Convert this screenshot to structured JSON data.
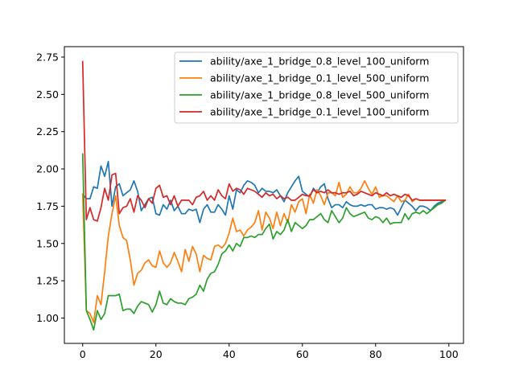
{
  "chart_data": {
    "type": "line",
    "title": "",
    "xlabel": "",
    "ylabel": "",
    "xlim": [
      -5,
      104
    ],
    "ylim": [
      0.83,
      2.82
    ],
    "x_ticks": [
      0,
      20,
      40,
      60,
      80,
      100
    ],
    "x_tick_labels": [
      "0",
      "20",
      "40",
      "60",
      "80",
      "100"
    ],
    "y_ticks": [
      1.0,
      1.25,
      1.5,
      1.75,
      2.0,
      2.25,
      2.5,
      2.75
    ],
    "y_tick_labels": [
      "1.00",
      "1.25",
      "1.50",
      "1.75",
      "2.00",
      "2.25",
      "2.50",
      "2.75"
    ],
    "grid": false,
    "legend_position": "top-right",
    "series": [
      {
        "name": "ability/axe_1_bridge_0.8_level_100_uniform",
        "color": "#1f77b4",
        "x": [
          0,
          1,
          2,
          3,
          4,
          5,
          6,
          7,
          8,
          9,
          10,
          11,
          12,
          13,
          14,
          15,
          16,
          17,
          18,
          19,
          20,
          21,
          22,
          23,
          24,
          25,
          26,
          27,
          28,
          29,
          30,
          31,
          32,
          33,
          34,
          35,
          36,
          37,
          38,
          39,
          40,
          41,
          42,
          43,
          44,
          45,
          46,
          47,
          48,
          49,
          50,
          51,
          52,
          53,
          54,
          55,
          56,
          57,
          58,
          59,
          60,
          61,
          62,
          63,
          64,
          65,
          66,
          67,
          68,
          69,
          70,
          71,
          72,
          73,
          74,
          75,
          76,
          77,
          78,
          79,
          80,
          81,
          82,
          83,
          84,
          85,
          86,
          87,
          88,
          89,
          90,
          91,
          92,
          93,
          94,
          95,
          96,
          97,
          98,
          99
        ],
        "y": [
          1.83,
          1.8,
          1.8,
          1.88,
          1.87,
          2.02,
          1.95,
          2.05,
          1.75,
          1.88,
          1.9,
          1.82,
          1.84,
          1.86,
          1.92,
          1.85,
          1.72,
          1.76,
          1.8,
          1.81,
          1.7,
          1.69,
          1.76,
          1.73,
          1.79,
          1.72,
          1.75,
          1.7,
          1.7,
          1.73,
          1.72,
          1.73,
          1.64,
          1.73,
          1.76,
          1.71,
          1.71,
          1.76,
          1.73,
          1.69,
          1.82,
          1.73,
          1.86,
          1.84,
          1.89,
          1.92,
          1.91,
          1.89,
          1.84,
          1.87,
          1.85,
          1.85,
          1.84,
          1.86,
          1.82,
          1.78,
          1.84,
          1.88,
          1.92,
          1.95,
          1.85,
          1.83,
          1.81,
          1.87,
          1.84,
          1.88,
          1.9,
          1.8,
          1.74,
          1.76,
          1.76,
          1.74,
          1.78,
          1.76,
          1.75,
          1.75,
          1.76,
          1.75,
          1.76,
          1.76,
          1.73,
          1.74,
          1.74,
          1.73,
          1.74,
          1.73,
          1.69,
          1.74,
          1.79,
          1.77,
          1.75,
          1.72,
          1.75,
          1.75,
          1.74,
          1.72,
          1.75,
          1.77,
          1.78,
          1.79
        ]
      },
      {
        "name": "ability/axe_1_bridge_0.1_level_500_uniform",
        "color": "#ff7f0e",
        "x": [
          0,
          1,
          2,
          3,
          4,
          5,
          6,
          7,
          8,
          9,
          10,
          11,
          12,
          13,
          14,
          15,
          16,
          17,
          18,
          19,
          20,
          21,
          22,
          23,
          24,
          25,
          26,
          27,
          28,
          29,
          30,
          31,
          32,
          33,
          34,
          35,
          36,
          37,
          38,
          39,
          40,
          41,
          42,
          43,
          44,
          45,
          46,
          47,
          48,
          49,
          50,
          51,
          52,
          53,
          54,
          55,
          56,
          57,
          58,
          59,
          60,
          61,
          62,
          63,
          64,
          65,
          66,
          67,
          68,
          69,
          70,
          71,
          72,
          73,
          74,
          75,
          76,
          77,
          78,
          79,
          80,
          81,
          82,
          83,
          84,
          85,
          86,
          87,
          88,
          89,
          90,
          91,
          92,
          93,
          94,
          95,
          96,
          97,
          98,
          99
        ],
        "y": [
          1.83,
          1.05,
          1.03,
          0.97,
          1.15,
          1.09,
          1.31,
          1.55,
          1.7,
          1.82,
          1.62,
          1.54,
          1.52,
          1.39,
          1.22,
          1.3,
          1.32,
          1.37,
          1.39,
          1.35,
          1.34,
          1.45,
          1.37,
          1.34,
          1.37,
          1.44,
          1.38,
          1.31,
          1.46,
          1.38,
          1.48,
          1.43,
          1.31,
          1.42,
          1.4,
          1.39,
          1.48,
          1.49,
          1.47,
          1.5,
          1.57,
          1.67,
          1.58,
          1.59,
          1.55,
          1.59,
          1.61,
          1.64,
          1.72,
          1.59,
          1.71,
          1.67,
          1.6,
          1.71,
          1.62,
          1.7,
          1.64,
          1.76,
          1.71,
          1.78,
          1.8,
          1.7,
          1.83,
          1.77,
          1.86,
          1.82,
          1.76,
          1.84,
          1.84,
          1.82,
          1.91,
          1.81,
          1.83,
          1.88,
          1.84,
          1.84,
          1.87,
          1.92,
          1.87,
          1.83,
          1.88,
          1.81,
          1.82,
          1.82,
          1.8,
          1.78,
          1.82,
          1.78,
          1.79,
          1.83,
          1.78,
          1.8,
          1.79,
          1.79,
          1.79,
          1.79,
          1.79,
          1.79,
          1.79,
          1.79
        ]
      },
      {
        "name": "ability/axe_1_bridge_0.8_level_500_uniform",
        "color": "#2ca02c",
        "x": [
          0,
          1,
          2,
          3,
          4,
          5,
          6,
          7,
          8,
          9,
          10,
          11,
          12,
          13,
          14,
          15,
          16,
          17,
          18,
          19,
          20,
          21,
          22,
          23,
          24,
          25,
          26,
          27,
          28,
          29,
          30,
          31,
          32,
          33,
          34,
          35,
          36,
          37,
          38,
          39,
          40,
          41,
          42,
          43,
          44,
          45,
          46,
          47,
          48,
          49,
          50,
          51,
          52,
          53,
          54,
          55,
          56,
          57,
          58,
          59,
          60,
          61,
          62,
          63,
          64,
          65,
          66,
          67,
          68,
          69,
          70,
          71,
          72,
          73,
          74,
          75,
          76,
          77,
          78,
          79,
          80,
          81,
          82,
          83,
          84,
          85,
          86,
          87,
          88,
          89,
          90,
          91,
          92,
          93,
          94,
          95,
          96,
          97,
          98,
          99
        ],
        "y": [
          2.1,
          1.05,
          0.99,
          0.92,
          1.05,
          0.99,
          1.03,
          1.15,
          1.15,
          1.15,
          1.16,
          1.05,
          1.06,
          1.06,
          1.03,
          1.08,
          1.11,
          1.1,
          1.09,
          1.04,
          1.09,
          1.18,
          1.1,
          1.09,
          1.13,
          1.11,
          1.1,
          1.1,
          1.09,
          1.13,
          1.14,
          1.16,
          1.22,
          1.18,
          1.26,
          1.3,
          1.31,
          1.36,
          1.43,
          1.45,
          1.49,
          1.45,
          1.5,
          1.48,
          1.54,
          1.54,
          1.55,
          1.54,
          1.56,
          1.56,
          1.6,
          1.63,
          1.53,
          1.58,
          1.56,
          1.59,
          1.66,
          1.58,
          1.64,
          1.62,
          1.6,
          1.62,
          1.66,
          1.66,
          1.68,
          1.7,
          1.66,
          1.64,
          1.72,
          1.68,
          1.64,
          1.67,
          1.74,
          1.7,
          1.68,
          1.69,
          1.7,
          1.71,
          1.67,
          1.66,
          1.68,
          1.67,
          1.64,
          1.67,
          1.63,
          1.64,
          1.64,
          1.64,
          1.7,
          1.66,
          1.7,
          1.71,
          1.7,
          1.72,
          1.7,
          1.72,
          1.74,
          1.76,
          1.77,
          1.79
        ]
      },
      {
        "name": "ability/axe_1_bridge_0.1_level_100_uniform",
        "color": "#d62728",
        "x": [
          0,
          1,
          2,
          3,
          4,
          5,
          6,
          7,
          8,
          9,
          10,
          11,
          12,
          13,
          14,
          15,
          16,
          17,
          18,
          19,
          20,
          21,
          22,
          23,
          24,
          25,
          26,
          27,
          28,
          29,
          30,
          31,
          32,
          33,
          34,
          35,
          36,
          37,
          38,
          39,
          40,
          41,
          42,
          43,
          44,
          45,
          46,
          47,
          48,
          49,
          50,
          51,
          52,
          53,
          54,
          55,
          56,
          57,
          58,
          59,
          60,
          61,
          62,
          63,
          64,
          65,
          66,
          67,
          68,
          69,
          70,
          71,
          72,
          73,
          74,
          75,
          76,
          77,
          78,
          79,
          80,
          81,
          82,
          83,
          84,
          85,
          86,
          87,
          88,
          89,
          90,
          91,
          92,
          93,
          94,
          95,
          96,
          97,
          98,
          99
        ],
        "y": [
          2.72,
          1.66,
          1.74,
          1.66,
          1.65,
          1.74,
          1.87,
          1.79,
          1.96,
          1.97,
          1.7,
          1.74,
          1.75,
          1.8,
          1.71,
          1.82,
          1.79,
          1.74,
          1.8,
          1.77,
          1.87,
          1.89,
          1.81,
          1.82,
          1.76,
          1.82,
          1.75,
          1.79,
          1.79,
          1.79,
          1.76,
          1.81,
          1.82,
          1.85,
          1.79,
          1.82,
          1.79,
          1.86,
          1.82,
          1.8,
          1.9,
          1.85,
          1.87,
          1.86,
          1.83,
          1.87,
          1.86,
          1.85,
          1.83,
          1.81,
          1.84,
          1.82,
          1.83,
          1.8,
          1.82,
          1.8,
          1.81,
          1.79,
          1.79,
          1.81,
          1.83,
          1.82,
          1.82,
          1.86,
          1.84,
          1.85,
          1.84,
          1.86,
          1.84,
          1.84,
          1.83,
          1.84,
          1.84,
          1.85,
          1.82,
          1.83,
          1.85,
          1.84,
          1.83,
          1.82,
          1.84,
          1.83,
          1.82,
          1.84,
          1.82,
          1.83,
          1.82,
          1.81,
          1.83,
          1.82,
          1.79,
          1.8,
          1.79,
          1.79,
          1.79,
          1.79,
          1.79,
          1.79,
          1.79,
          1.79
        ]
      }
    ]
  }
}
